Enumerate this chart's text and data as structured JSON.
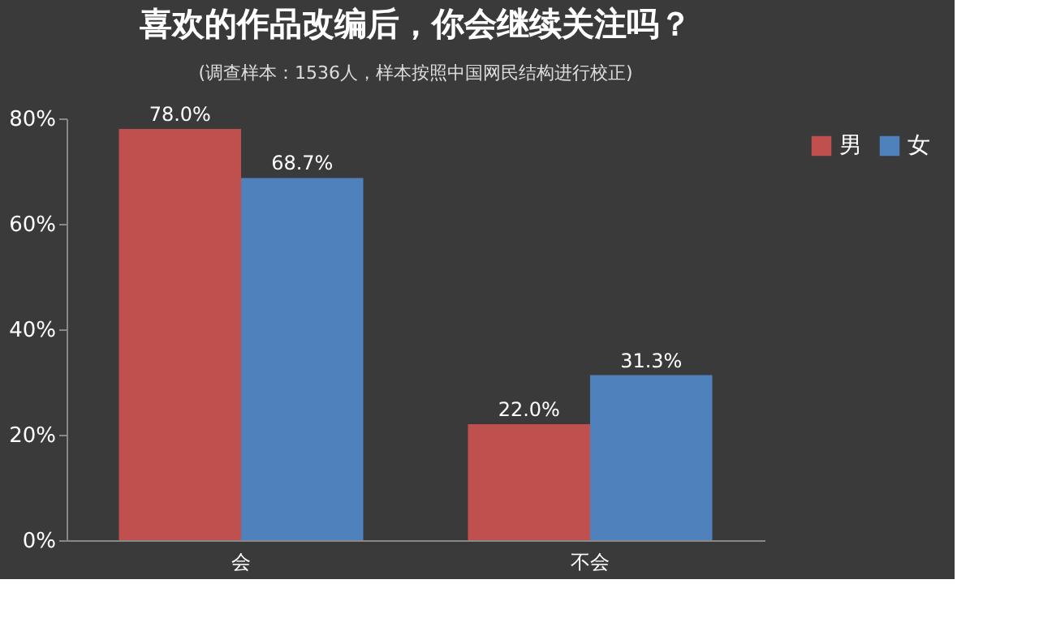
{
  "chart_data": {
    "type": "bar",
    "title": "喜欢的作品改编后，你会继续关注吗？",
    "subtitle": "(调查样本：1536人，样本按照中国网民结构进行校正)",
    "categories": [
      "会",
      "不会"
    ],
    "series": [
      {
        "name": "男",
        "color": "#c0504d",
        "values": [
          78.0,
          22.0
        ],
        "value_labels": [
          "78.0%",
          "22.0%"
        ]
      },
      {
        "name": "女",
        "color": "#4f81bd",
        "values": [
          68.7,
          31.3
        ],
        "value_labels": [
          "68.7%",
          "31.3%"
        ]
      }
    ],
    "ylim": [
      0,
      80
    ],
    "yticks": [
      {
        "value": 0,
        "label": "0%"
      },
      {
        "value": 20,
        "label": "20%"
      },
      {
        "value": 40,
        "label": "40%"
      },
      {
        "value": 60,
        "label": "60%"
      },
      {
        "value": 80,
        "label": "80%"
      }
    ],
    "grid": false,
    "legend": "right"
  }
}
